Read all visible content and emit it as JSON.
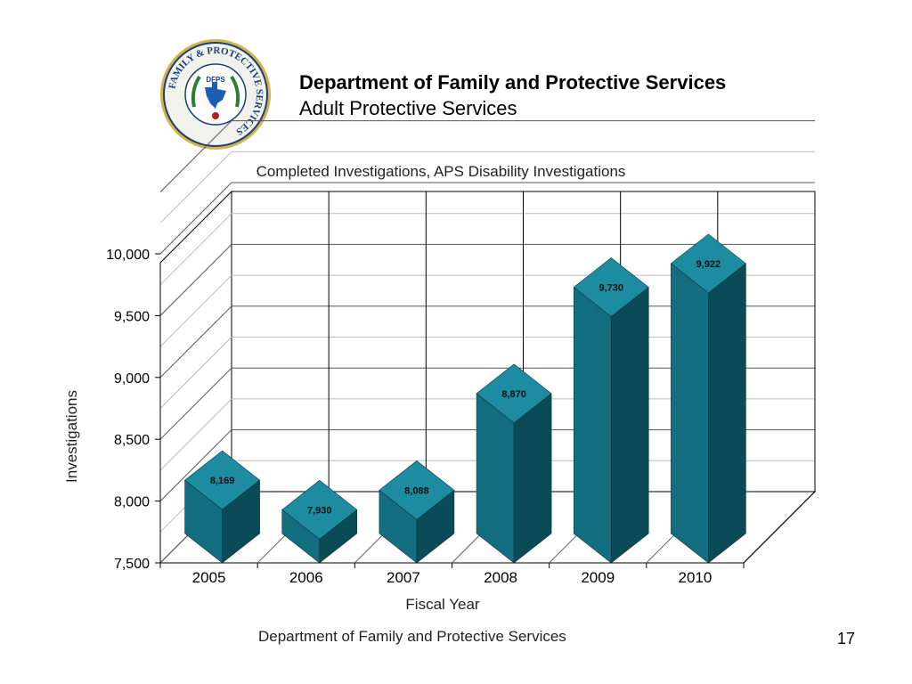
{
  "header": {
    "title": "Department of Family and Protective Services",
    "subtitle": "Adult Protective Services"
  },
  "logo": {
    "ring_text": "FAMILY & PROTECTIVE SERVICES",
    "center_text": "DFPS",
    "ring_color": "#1a3f7a",
    "accent_color": "#d4b44a"
  },
  "chart_data": {
    "type": "bar",
    "title": "Completed Investigations, APS Disability Investigations",
    "xlabel": "Fiscal Year",
    "ylabel": "Investigations",
    "categories": [
      "2005",
      "2006",
      "2007",
      "2008",
      "2009",
      "2010"
    ],
    "values": [
      8169,
      7930,
      8088,
      8870,
      9730,
      9922
    ],
    "value_labels": [
      "8,169",
      "7,930",
      "8,088",
      "8,870",
      "9,730",
      "9,922"
    ],
    "ylim": [
      7500,
      10000
    ],
    "yticks": [
      7500,
      8000,
      8500,
      9000,
      9500,
      10000
    ],
    "ytick_labels": [
      "7,500",
      "8,000",
      "8,500",
      "9,000",
      "9,500",
      "10,000"
    ],
    "grid": true,
    "bar_color": "#136e80",
    "bar_side_color": "#0b4a57",
    "bar_top_color": "#1e8ca0"
  },
  "footer": {
    "text": "Department of Family and Protective Services",
    "page_number": "17"
  }
}
